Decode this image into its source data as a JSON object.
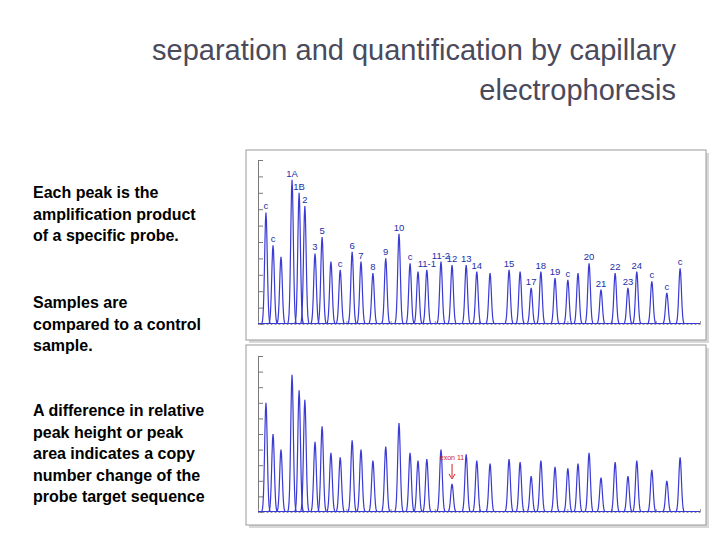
{
  "slide": {
    "title": [
      "separation and quantification by capillary",
      "electrophoresis"
    ],
    "paragraphs": [
      [
        "Each peak is the",
        "amplification product",
        "of a specific probe."
      ],
      [
        "Samples are",
        "compared to a control",
        "sample."
      ],
      [
        "A difference in relative",
        "peak height or peak",
        "area indicates a copy",
        "number change of the",
        "probe target sequence"
      ]
    ]
  },
  "chart_data": [
    {
      "type": "electropherogram",
      "color": "#3a3ad4",
      "x": [
        1.8,
        3.4,
        5.2,
        7.7,
        9.3,
        10.6,
        12.9,
        14.5,
        16.5,
        18.6,
        21.3,
        23.3,
        26.0,
        28.9,
        31.9,
        34.4,
        36.2,
        38.2,
        41.4,
        43.9,
        47.1,
        49.5,
        52.5,
        56.8,
        59.3,
        61.8,
        64.0,
        67.2,
        70.1,
        72.4,
        74.9,
        77.6,
        80.8,
        83.7,
        85.7,
        89.1,
        92.5,
        95.5
      ],
      "categories": [
        "c",
        "c",
        null,
        "1A",
        "1B",
        "2",
        "3",
        "5",
        null,
        "c",
        "6",
        "7",
        "8",
        "9",
        "10",
        "c",
        null,
        "11-1",
        "11-2",
        "12",
        "13",
        "14",
        null,
        "15",
        null,
        "17",
        "18",
        "19",
        "c",
        null,
        "20",
        "21",
        "22",
        "23",
        "24",
        "c",
        "c",
        "c"
      ],
      "values": [
        68,
        48,
        41,
        88,
        80,
        72,
        43,
        53,
        38,
        33,
        44,
        38,
        31,
        40,
        55,
        37,
        32,
        33,
        38,
        36,
        36,
        32,
        31,
        33,
        32,
        22,
        32,
        28,
        27,
        31,
        37,
        21,
        31,
        22,
        32,
        26,
        19,
        34
      ],
      "xlim": [
        0,
        100
      ],
      "ylim": [
        0,
        100
      ],
      "xticks": [
        0,
        10,
        20,
        30,
        40,
        50,
        60,
        70,
        80,
        90,
        100
      ],
      "yticks": [
        0,
        10,
        20,
        30,
        40,
        50,
        60,
        70,
        80,
        90,
        100
      ],
      "tick_labels": false
    },
    {
      "type": "electropherogram",
      "color": "#3a3ad4",
      "x": [
        1.8,
        3.4,
        5.2,
        7.7,
        9.3,
        10.6,
        12.9,
        14.5,
        16.5,
        18.6,
        21.3,
        23.3,
        26.0,
        28.9,
        31.9,
        34.4,
        36.2,
        38.2,
        41.4,
        43.9,
        47.1,
        49.5,
        52.5,
        56.8,
        59.3,
        61.8,
        64.0,
        67.2,
        70.1,
        72.4,
        74.9,
        77.6,
        80.8,
        83.7,
        85.7,
        89.1,
        92.5,
        95.5
      ],
      "values": [
        70,
        50,
        40,
        88,
        78,
        72,
        45,
        55,
        38,
        35,
        46,
        40,
        33,
        42,
        57,
        38,
        33,
        34,
        40,
        18,
        37,
        33,
        31,
        34,
        32,
        23,
        33,
        29,
        28,
        31,
        38,
        22,
        32,
        23,
        33,
        27,
        20,
        35
      ],
      "annotations": [
        {
          "text": "exon 11",
          "x": 43.9,
          "y": 18
        }
      ],
      "xlim": [
        0,
        100
      ],
      "ylim": [
        0,
        100
      ],
      "xticks": [
        0,
        10,
        20,
        30,
        40,
        50,
        60,
        70,
        80,
        90,
        100
      ],
      "yticks": [
        0,
        10,
        20,
        30,
        40,
        50,
        60,
        70,
        80,
        90,
        100
      ],
      "tick_labels": false
    }
  ]
}
